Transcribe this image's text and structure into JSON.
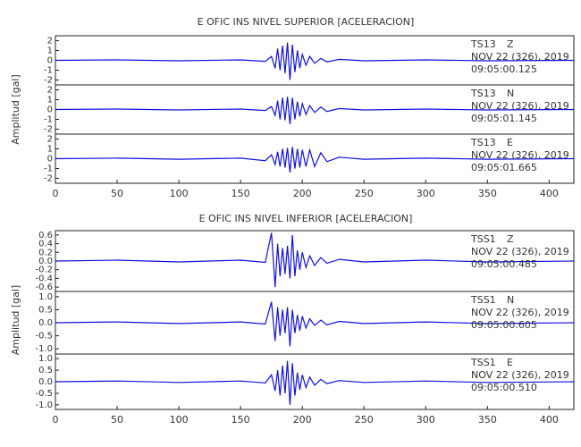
{
  "chart_data": [
    {
      "type": "line",
      "title": "E OFIC INS NIVEL SUPERIOR [ACELERACION]",
      "y_label": "Amplitud [gal]",
      "xlim": [
        0,
        420
      ],
      "xticks": [
        0,
        50,
        100,
        150,
        200,
        250,
        300,
        350,
        400
      ],
      "x": [
        0,
        50,
        100,
        150,
        170,
        175,
        178,
        180,
        182,
        184,
        186,
        188,
        190,
        192,
        194,
        196,
        198,
        200,
        203,
        206,
        210,
        215,
        220,
        230,
        250,
        300,
        350,
        420
      ],
      "traces": [
        {
          "station": "TS13",
          "component": "Z",
          "date": "NOV 22 (326), 2019",
          "time": "09:05:00.125",
          "color": "#1010e0",
          "ylim": [
            -2.5,
            2.5
          ],
          "yticks": [
            -2,
            -1,
            0,
            1,
            2
          ],
          "values": [
            0,
            0.05,
            -0.05,
            0.05,
            -0.1,
            0.4,
            -0.8,
            1.2,
            -1.0,
            1.5,
            -1.3,
            1.8,
            -2.0,
            1.6,
            -1.2,
            1.0,
            -0.8,
            0.6,
            -0.5,
            0.4,
            -0.3,
            0.2,
            -0.15,
            0.1,
            -0.05,
            0.05,
            -0.05,
            0
          ]
        },
        {
          "station": "TS13",
          "component": "N",
          "date": "NOV 22 (326), 2019",
          "time": "09:05:01.145",
          "color": "#1010e0",
          "ylim": [
            -2.5,
            2.5
          ],
          "yticks": [
            -2,
            -1,
            0,
            1,
            2
          ],
          "values": [
            0,
            0.05,
            -0.05,
            0.05,
            -0.1,
            0.3,
            -0.6,
            0.9,
            -1.0,
            1.2,
            -1.1,
            1.3,
            -1.5,
            1.2,
            -1.0,
            0.8,
            -0.7,
            0.6,
            -0.5,
            0.4,
            -0.3,
            0.25,
            -0.2,
            0.1,
            -0.05,
            0.05,
            -0.05,
            0
          ]
        },
        {
          "station": "TS13",
          "component": "E",
          "date": "NOV 22 (326), 2019",
          "time": "09:05:01.665",
          "color": "#1010e0",
          "ylim": [
            -2.5,
            2.5
          ],
          "yticks": [
            -2,
            -1,
            0,
            1,
            2
          ],
          "values": [
            0,
            0.05,
            -0.05,
            0.05,
            -0.2,
            0.4,
            -0.6,
            0.7,
            -0.8,
            1.0,
            -0.9,
            1.1,
            -1.4,
            1.2,
            -1.0,
            1.0,
            -0.9,
            0.9,
            -0.8,
            0.9,
            -0.8,
            0.6,
            -0.3,
            0.15,
            -0.05,
            0.05,
            -0.05,
            0
          ]
        }
      ]
    },
    {
      "type": "line",
      "title": "E OFIC INS NIVEL INFERIOR [ACELERACION]",
      "y_label": "Amplitud [gal]",
      "xlim": [
        0,
        420
      ],
      "xticks": [
        0,
        50,
        100,
        150,
        200,
        250,
        300,
        350,
        400
      ],
      "x": [
        0,
        50,
        100,
        150,
        170,
        175,
        178,
        180,
        182,
        184,
        186,
        188,
        190,
        192,
        194,
        196,
        198,
        200,
        203,
        206,
        210,
        215,
        220,
        230,
        250,
        300,
        350,
        420
      ],
      "traces": [
        {
          "station": "TSS1",
          "component": "Z",
          "date": "NOV 22 (326), 2019",
          "time": "09:05:00.485",
          "color": "#1010e0",
          "ylim": [
            -0.7,
            0.7
          ],
          "yticks": [
            -0.6,
            -0.4,
            -0.2,
            {
              "value": 0,
              "label": "0.0"
            },
            0.2,
            0.4,
            0.6
          ],
          "values": [
            0,
            0.02,
            -0.02,
            0.02,
            -0.03,
            0.65,
            -0.6,
            0.4,
            -0.35,
            0.3,
            -0.3,
            0.35,
            -0.4,
            0.6,
            -0.35,
            0.25,
            -0.2,
            0.2,
            -0.15,
            0.12,
            -0.1,
            0.08,
            -0.05,
            0.04,
            -0.02,
            0.02,
            -0.02,
            0
          ]
        },
        {
          "station": "TSS1",
          "component": "N",
          "date": "NOV 22 (326), 2019",
          "time": "09:05:00.605",
          "color": "#1010e0",
          "ylim": [
            -1.2,
            1.2
          ],
          "yticks": [
            {
              "value": -1,
              "label": "-1.0"
            },
            -0.5,
            {
              "value": 0,
              "label": "0.0"
            },
            0.5,
            {
              "value": 1,
              "label": "1.0"
            }
          ],
          "values": [
            0,
            0.03,
            -0.03,
            0.03,
            -0.05,
            0.8,
            -0.7,
            0.6,
            -0.5,
            0.5,
            -0.4,
            0.6,
            -0.9,
            0.5,
            -0.4,
            0.3,
            -0.3,
            0.25,
            -0.2,
            0.15,
            -0.1,
            0.1,
            -0.08,
            0.05,
            -0.03,
            0.03,
            -0.03,
            0
          ]
        },
        {
          "station": "TSS1",
          "component": "E",
          "date": "NOV 22 (326), 2019",
          "time": "09:05:00.510",
          "color": "#1010e0",
          "ylim": [
            -1.2,
            1.2
          ],
          "yticks": [
            {
              "value": -1,
              "label": "-1.0"
            },
            -0.5,
            {
              "value": 0,
              "label": "0.0"
            },
            0.5,
            {
              "value": 1,
              "label": "1.0"
            }
          ],
          "values": [
            0,
            0.03,
            -0.03,
            0.03,
            -0.05,
            0.3,
            -0.4,
            0.5,
            -0.6,
            0.7,
            -0.5,
            0.9,
            -1.0,
            0.8,
            -0.6,
            0.4,
            -0.35,
            0.3,
            -0.25,
            0.2,
            -0.15,
            0.1,
            -0.08,
            0.05,
            -0.03,
            0.03,
            -0.03,
            0
          ]
        }
      ]
    }
  ]
}
